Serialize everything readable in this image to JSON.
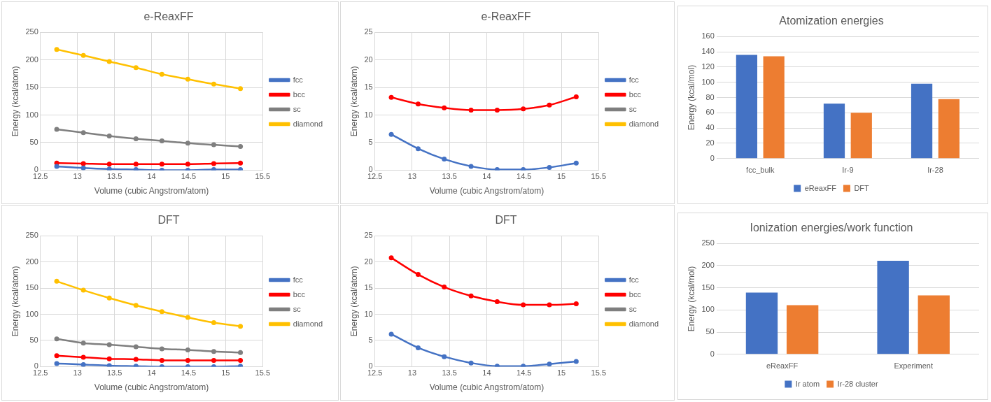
{
  "chart_data": [
    {
      "type": "line",
      "title": "e-ReaxFF",
      "xlabel": "Volume (cubic Angstrom/atom)",
      "ylabel": "Energy (kcal/atom)",
      "x": [
        12.72,
        13.08,
        13.43,
        13.79,
        14.14,
        14.49,
        14.84,
        15.2
      ],
      "xlim": [
        12.5,
        15.5
      ],
      "xticks": [
        12.5,
        13,
        13.5,
        14,
        14.5,
        15,
        15.5
      ],
      "ylim": [
        0,
        250
      ],
      "yticks": [
        0,
        50,
        100,
        150,
        200,
        250
      ],
      "grid": true,
      "legend": "right",
      "marker": "circle",
      "line_style": "solid",
      "series": [
        {
          "name": "fcc",
          "color": "#4472c4",
          "values": [
            7,
            4,
            2,
            1,
            0,
            0,
            1,
            1
          ]
        },
        {
          "name": "bcc",
          "color": "#ff0000",
          "values": [
            13,
            12,
            11,
            11,
            11,
            11,
            12,
            13
          ]
        },
        {
          "name": "sc",
          "color": "#7f7f7f",
          "values": [
            74,
            68,
            62,
            57,
            53,
            49,
            46,
            43
          ]
        },
        {
          "name": "diamond",
          "color": "#ffc000",
          "values": [
            219,
            208,
            197,
            186,
            174,
            165,
            156,
            148
          ]
        }
      ]
    },
    {
      "type": "line",
      "title": "e-ReaxFF",
      "xlabel": "Volume (cubic Angstrom/atom)",
      "ylabel": "Energy (kcal/atom)",
      "x": [
        12.72,
        13.08,
        13.43,
        13.79,
        14.14,
        14.49,
        14.84,
        15.2
      ],
      "xlim": [
        12.5,
        15.5
      ],
      "xticks": [
        12.5,
        13,
        13.5,
        14,
        14.5,
        15,
        15.5
      ],
      "ylim": [
        0,
        25
      ],
      "yticks": [
        0,
        5,
        10,
        15,
        20,
        25
      ],
      "grid": true,
      "legend": "right",
      "marker": "circle",
      "line_style": "solid",
      "series": [
        {
          "name": "fcc",
          "color": "#4472c4",
          "values": [
            6.5,
            3.9,
            2.0,
            0.7,
            0.1,
            0.1,
            0.5,
            1.3
          ]
        },
        {
          "name": "bcc",
          "color": "#ff0000",
          "values": [
            13.2,
            12.0,
            11.3,
            10.9,
            10.9,
            11.1,
            11.8,
            13.3
          ]
        },
        {
          "name": "sc",
          "color": "#7f7f7f",
          "values": [
            null,
            null,
            null,
            null,
            null,
            null,
            null,
            null
          ]
        },
        {
          "name": "diamond",
          "color": "#ffc000",
          "values": [
            null,
            null,
            null,
            null,
            null,
            null,
            null,
            null
          ]
        }
      ]
    },
    {
      "type": "line",
      "title": "DFT",
      "xlabel": "Volume (cubic Angstrom/atom)",
      "ylabel": "Energy (kcal/atom)",
      "x": [
        12.72,
        13.08,
        13.43,
        13.79,
        14.14,
        14.49,
        14.84,
        15.2
      ],
      "xlim": [
        12.5,
        15.5
      ],
      "xticks": [
        12.5,
        13,
        13.5,
        14,
        14.5,
        15,
        15.5
      ],
      "ylim": [
        0,
        250
      ],
      "yticks": [
        0,
        50,
        100,
        150,
        200,
        250
      ],
      "grid": true,
      "legend": "right",
      "marker": "circle",
      "line_style": "solid",
      "series": [
        {
          "name": "fcc",
          "color": "#4472c4",
          "values": [
            6,
            4,
            2,
            1,
            0,
            0,
            0,
            1
          ]
        },
        {
          "name": "bcc",
          "color": "#ff0000",
          "values": [
            21,
            18,
            15,
            14,
            12,
            12,
            12,
            12
          ]
        },
        {
          "name": "sc",
          "color": "#7f7f7f",
          "values": [
            53,
            45,
            42,
            38,
            34,
            32,
            29,
            27
          ]
        },
        {
          "name": "diamond",
          "color": "#ffc000",
          "values": [
            163,
            146,
            131,
            117,
            105,
            94,
            84,
            77
          ]
        }
      ]
    },
    {
      "type": "line",
      "title": "DFT",
      "xlabel": "Volume (cubic Angstrom/atom)",
      "ylabel": "Energy (kcal/atom)",
      "x": [
        12.72,
        13.08,
        13.43,
        13.79,
        14.14,
        14.49,
        14.84,
        15.2
      ],
      "xlim": [
        12.5,
        15.5
      ],
      "xticks": [
        12.5,
        13,
        13.5,
        14,
        14.5,
        15,
        15.5
      ],
      "ylim": [
        0,
        25
      ],
      "yticks": [
        0,
        5,
        10,
        15,
        20,
        25
      ],
      "grid": true,
      "legend": "right",
      "marker": "circle",
      "line_style": "solid",
      "series": [
        {
          "name": "fcc",
          "color": "#4472c4",
          "values": [
            6.2,
            3.6,
            1.9,
            0.7,
            0.1,
            0.1,
            0.5,
            1.0
          ]
        },
        {
          "name": "bcc",
          "color": "#ff0000",
          "values": [
            20.8,
            17.6,
            15.2,
            13.5,
            12.4,
            11.8,
            11.8,
            12.0
          ]
        },
        {
          "name": "sc",
          "color": "#7f7f7f",
          "values": [
            null,
            null,
            null,
            null,
            null,
            null,
            null,
            null
          ]
        },
        {
          "name": "diamond",
          "color": "#ffc000",
          "values": [
            null,
            null,
            null,
            null,
            null,
            null,
            null,
            null
          ]
        }
      ]
    },
    {
      "type": "bar",
      "title": "Atomization energies",
      "ylabel": "Energy (kcal/mol)",
      "categories": [
        "fcc_bulk",
        "Ir-9",
        "Ir-28"
      ],
      "ylim": [
        0,
        160
      ],
      "yticks": [
        0,
        20,
        40,
        60,
        80,
        100,
        120,
        140,
        160
      ],
      "grid": "y",
      "legend": "bottom",
      "series": [
        {
          "name": "eReaxFF",
          "color": "#4472c4",
          "values": [
            136,
            72,
            98
          ]
        },
        {
          "name": "DFT",
          "color": "#ed7d31",
          "values": [
            134,
            60,
            78
          ]
        }
      ]
    },
    {
      "type": "bar",
      "title": "Ionization energies/work function",
      "ylabel": "Energy (kcal/mol)",
      "categories": [
        "eReaxFF",
        "Experiment"
      ],
      "ylim": [
        0,
        250
      ],
      "yticks": [
        0,
        50,
        100,
        150,
        200,
        250
      ],
      "grid": "y",
      "legend": "bottom",
      "series": [
        {
          "name": "Ir atom",
          "color": "#4472c4",
          "values": [
            139,
            211
          ]
        },
        {
          "name": "Ir-28 cluster",
          "color": "#ed7d31",
          "values": [
            111,
            133
          ]
        }
      ]
    }
  ]
}
